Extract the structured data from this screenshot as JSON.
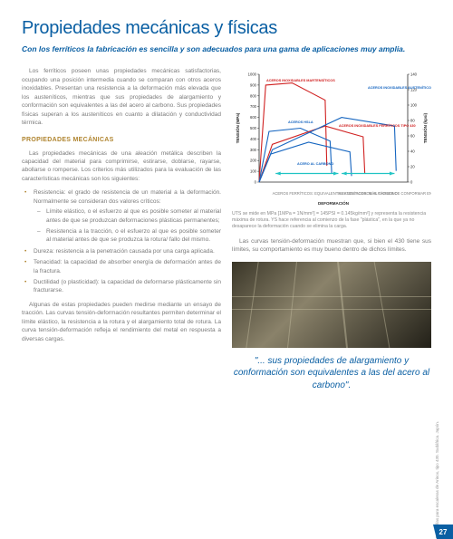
{
  "title": "Propiedades mecánicas y físicas",
  "subtitle": "Con los ferríticos la fabricación es sencilla y son adecuados para una gama de aplicaciones muy amplia.",
  "intro": "Los ferríticos poseen unas propiedades mecánicas satisfactorias, ocupando una posición intermedia cuando se comparan con otros aceros inoxidables. Presentan una resistencia a la deformación más elevada que los austeníticos, mientras que sus propiedades de alargamiento y conformación son equivalentes a las del acero al carbono. Sus propiedades físicas superan a los austeníticos en cuanto a dilatación y conductividad térmica.",
  "section_head": "PROPIEDADES MECÁNICAS",
  "para1": "Las propiedades mecánicas de una aleación metálica describen la capacidad del material para comprimirse, estirarse, doblarse, rayarse, abollarse o romperse. Los criterios más utilizados para la evaluación de las características mecánicas son los siguientes:",
  "bullets": {
    "b1": "Resistencia: el grado de resistencia de un material a la deformación. Normalmente se consideran dos valores críticos:",
    "b1a": "Límite elástico, o el esfuerzo al que es posible someter al material antes de que se produzcan deformaciones plásticas permanentes;",
    "b1b": "Resistencia a la tracción, o el esfuerzo al que es posible someter al material antes de que se produzca la rotura/ fallo del mismo.",
    "b2": "Dureza: resistencia a la penetración causada por una carga aplicada.",
    "b3": "Tenacidad: la capacidad de absorber energía de deformación antes de la fractura.",
    "b4": "Ductilidad (o plasticidad): la capacidad de deformarse plásticamente sin fracturarse."
  },
  "para2": "Algunas de estas propiedades pueden medirse mediante un ensayo de tracción. Las curvas tensión-deformación resultantes permiten determinar el límite elástico, la resistencia a la rotura y el alargamiento total de rotura. La curva tensión-deformación refleja el rendimiento del metal en respuesta a diversas cargas.",
  "chart": {
    "type": "line",
    "xlabel": "DEFORMACIÓN",
    "ylabel_left": "TENSIÓN (MPa)",
    "ylabel_right": "TENSIÓN (kpsi)",
    "ylim_left": [
      0,
      1000
    ],
    "ylim_right": [
      0,
      140
    ],
    "ytick_left": [
      0,
      100,
      200,
      300,
      400,
      500,
      600,
      700,
      800,
      900,
      1000
    ],
    "ytick_right": [
      0,
      20,
      40,
      60,
      80,
      100,
      120,
      140
    ],
    "background_color": "#ffffff",
    "axis_color": "#2a2a2a",
    "curves": [
      {
        "name": "ACEROS INOXIDABLES MARTENSÍTICOS",
        "color": "#d02020",
        "values": [
          [
            0,
            0
          ],
          [
            4,
            900
          ],
          [
            20,
            920
          ],
          [
            40,
            760
          ]
        ]
      },
      {
        "name": "ACEROS HSLA",
        "color": "#1565c0",
        "values": [
          [
            0,
            0
          ],
          [
            6,
            470
          ],
          [
            25,
            500
          ],
          [
            43,
            380
          ]
        ]
      },
      {
        "name": "ACEROS INOXIDABLES FERRÍTICOS TIPO 430",
        "color": "#d02020",
        "values": [
          [
            0,
            0
          ],
          [
            8,
            350
          ],
          [
            40,
            520
          ],
          [
            63,
            420
          ]
        ]
      },
      {
        "name": "ACEROS INOXIDABLES AUSTENÍTICOS TIPO 304/316",
        "color": "#1565c0",
        "values": [
          [
            0,
            0
          ],
          [
            8,
            300
          ],
          [
            50,
            600
          ],
          [
            82,
            520
          ]
        ]
      },
      {
        "name": "ACERO AL CARBONO",
        "color": "#1565c0",
        "values": [
          [
            0,
            0
          ],
          [
            7,
            260
          ],
          [
            30,
            370
          ],
          [
            55,
            280
          ]
        ]
      }
    ],
    "x_range": [
      0,
      90
    ],
    "annotations": {
      "left_box": "ACEROS FERRÍTICOS: EQUIVALENTES A LOS ACEROS AL CARBONO",
      "right_box": "AUSTENÍTICOS: MÁS FÁCILES DE CONFORMAR EN FORMAS COMPLEJAS",
      "annotation_fontsize": 4.2,
      "annotation_color": "#7a7a7a",
      "arrow_color": "#20c4c4"
    },
    "label_fontsize": 4.5,
    "tick_fontsize": 4.2
  },
  "chart_caption": "UTS se mide en MPa [1MPa = 1N/mm²] = 145PSI = 0.145kg/mm²] y representa la resistencia máxima de rotura. YS hace referencia al comienzo de la fase \"plástica\", en la que ya no desaparece la deformación cuando se elimina la carga.",
  "followtext": "Las curvas tensión-deformación muestran que, si bien el 430 tiene sus límites, su comportamiento es muy bueno dentro de dichos límites.",
  "photo_credit": "Barandillas para escaleras de Arinox, tipo 430. Sudáfrica. Japón.",
  "quote": "\"... sus propiedades de alargamiento y conformación son equivalentes a las del acero al carbono\".",
  "page_number": "27"
}
